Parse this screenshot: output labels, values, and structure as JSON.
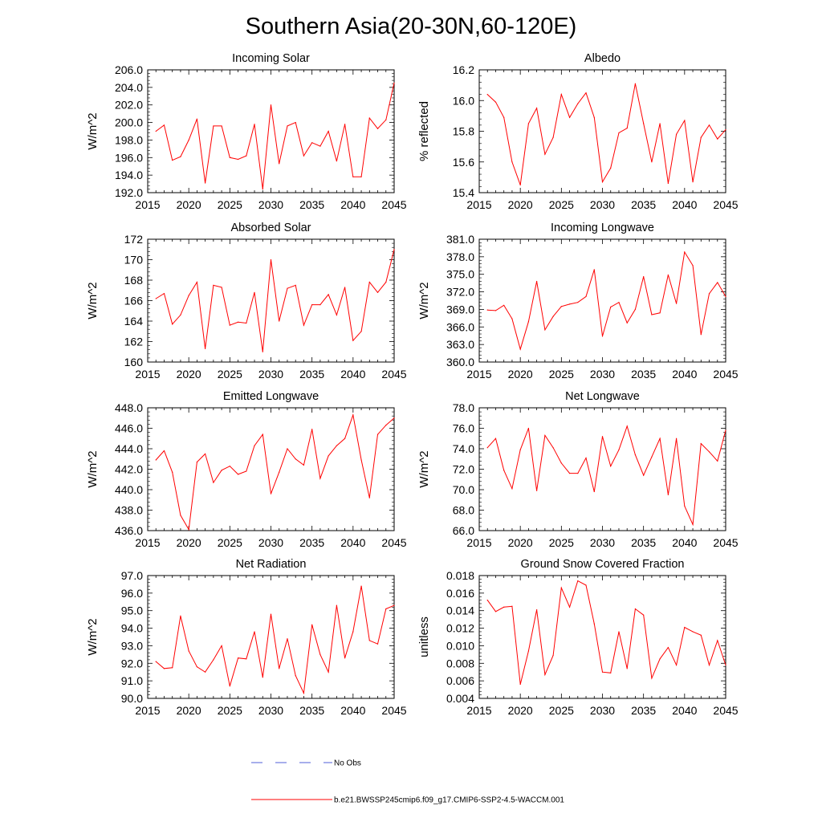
{
  "title": "Southern Asia(20-30N,60-120E)",
  "line_color": "#ff0000",
  "obs_color": "#4f5fd8",
  "legend": {
    "obs_label": "No Obs",
    "model_label": "b.e21.BWSSP245cmip6.f09_g17.CMIP6-SSP2-4.5-WACCM.001"
  },
  "chart_data": [
    {
      "type": "line",
      "title": "Incoming Solar",
      "ylabel": "W/m^2",
      "xlim": [
        2015,
        2045
      ],
      "ylim": [
        192,
        206
      ],
      "xticks": [
        2015,
        2020,
        2025,
        2030,
        2035,
        2040,
        2045
      ],
      "yticks": [
        "192.0",
        "194.0",
        "196.0",
        "198.0",
        "200.0",
        "202.0",
        "204.0",
        "206.0"
      ],
      "x": [
        2016,
        2017,
        2018,
        2019,
        2020,
        2021,
        2022,
        2023,
        2024,
        2025,
        2026,
        2027,
        2028,
        2029,
        2030,
        2031,
        2032,
        2033,
        2034,
        2035,
        2036,
        2037,
        2038,
        2039,
        2040,
        2041,
        2042,
        2043,
        2044,
        2045
      ],
      "values": [
        199.0,
        199.7,
        195.7,
        196.1,
        198.0,
        200.4,
        193.1,
        199.6,
        199.6,
        196.0,
        195.8,
        196.2,
        199.8,
        192.4,
        202.0,
        195.3,
        199.6,
        200.0,
        196.2,
        197.7,
        197.3,
        199.0,
        195.6,
        199.8,
        193.8,
        193.8,
        200.5,
        199.3,
        200.3,
        204.5
      ]
    },
    {
      "type": "line",
      "title": "Albedo",
      "ylabel": "% reflected",
      "xlim": [
        2015,
        2045
      ],
      "ylim": [
        15.4,
        16.2
      ],
      "xticks": [
        2015,
        2020,
        2025,
        2030,
        2035,
        2040,
        2045
      ],
      "yticks": [
        "15.4",
        "15.6",
        "15.8",
        "16.0",
        "16.2"
      ],
      "x": [
        2016,
        2017,
        2018,
        2019,
        2020,
        2021,
        2022,
        2023,
        2024,
        2025,
        2026,
        2027,
        2028,
        2029,
        2030,
        2031,
        2032,
        2033,
        2034,
        2035,
        2036,
        2037,
        2038,
        2039,
        2040,
        2041,
        2042,
        2043,
        2044,
        2045
      ],
      "values": [
        16.04,
        15.99,
        15.89,
        15.6,
        15.45,
        15.85,
        15.95,
        15.65,
        15.76,
        16.04,
        15.89,
        15.98,
        16.05,
        15.89,
        15.47,
        15.56,
        15.79,
        15.82,
        16.11,
        15.85,
        15.6,
        15.85,
        15.46,
        15.78,
        15.87,
        15.47,
        15.76,
        15.84,
        15.75,
        15.81
      ]
    },
    {
      "type": "line",
      "title": "Absorbed Solar",
      "ylabel": "W/m^2",
      "xlim": [
        2015,
        2045
      ],
      "ylim": [
        160,
        172
      ],
      "xticks": [
        2015,
        2020,
        2025,
        2030,
        2035,
        2040,
        2045
      ],
      "yticks": [
        "160",
        "162",
        "164",
        "166",
        "168",
        "170",
        "172"
      ],
      "x": [
        2016,
        2017,
        2018,
        2019,
        2020,
        2021,
        2022,
        2023,
        2024,
        2025,
        2026,
        2027,
        2028,
        2029,
        2030,
        2031,
        2032,
        2033,
        2034,
        2035,
        2036,
        2037,
        2038,
        2039,
        2040,
        2041,
        2042,
        2043,
        2044,
        2045
      ],
      "values": [
        166.2,
        166.7,
        163.7,
        164.6,
        166.5,
        167.8,
        161.3,
        167.5,
        167.3,
        163.6,
        163.9,
        163.8,
        166.8,
        161.0,
        170.0,
        164.0,
        167.2,
        167.5,
        163.6,
        165.6,
        165.6,
        166.6,
        164.6,
        167.3,
        162.1,
        163.0,
        167.8,
        166.8,
        167.8,
        171.0
      ]
    },
    {
      "type": "line",
      "title": "Incoming Longwave",
      "ylabel": "W/m^2",
      "xlim": [
        2015,
        2045
      ],
      "ylim": [
        360,
        381
      ],
      "xticks": [
        2015,
        2020,
        2025,
        2030,
        2035,
        2040,
        2045
      ],
      "yticks": [
        "360.0",
        "363.0",
        "366.0",
        "369.0",
        "372.0",
        "375.0",
        "378.0",
        "381.0"
      ],
      "x": [
        2016,
        2017,
        2018,
        2019,
        2020,
        2021,
        2022,
        2023,
        2024,
        2025,
        2026,
        2027,
        2028,
        2029,
        2030,
        2031,
        2032,
        2033,
        2034,
        2035,
        2036,
        2037,
        2038,
        2039,
        2040,
        2041,
        2042,
        2043,
        2044,
        2045
      ],
      "values": [
        368.9,
        368.8,
        369.7,
        367.4,
        362.2,
        366.9,
        373.8,
        365.5,
        367.8,
        369.5,
        369.9,
        370.2,
        371.2,
        375.8,
        364.4,
        369.4,
        370.2,
        366.7,
        369.0,
        374.6,
        368.1,
        368.4,
        374.9,
        370.0,
        378.8,
        376.5,
        364.7,
        371.7,
        373.6,
        371.2
      ]
    },
    {
      "type": "line",
      "title": "Emitted Longwave",
      "ylabel": "W/m^2",
      "xlim": [
        2015,
        2045
      ],
      "ylim": [
        436,
        448
      ],
      "xticks": [
        2015,
        2020,
        2025,
        2030,
        2035,
        2040,
        2045
      ],
      "yticks": [
        "436.0",
        "438.0",
        "440.0",
        "442.0",
        "444.0",
        "446.0",
        "448.0"
      ],
      "x": [
        2016,
        2017,
        2018,
        2019,
        2020,
        2021,
        2022,
        2023,
        2024,
        2025,
        2026,
        2027,
        2028,
        2029,
        2030,
        2031,
        2032,
        2033,
        2034,
        2035,
        2036,
        2037,
        2038,
        2039,
        2040,
        2041,
        2042,
        2043,
        2044,
        2045
      ],
      "values": [
        442.9,
        443.8,
        441.7,
        437.5,
        436.1,
        442.7,
        443.5,
        440.7,
        441.9,
        442.3,
        441.5,
        441.8,
        444.3,
        445.4,
        439.6,
        441.7,
        444.0,
        443.0,
        442.4,
        445.9,
        441.1,
        443.3,
        444.3,
        445.0,
        447.3,
        442.9,
        439.2,
        445.4,
        446.3,
        447.0
      ]
    },
    {
      "type": "line",
      "title": "Net Longwave",
      "ylabel": "W/m^2",
      "xlim": [
        2015,
        2045
      ],
      "ylim": [
        66,
        78
      ],
      "xticks": [
        2015,
        2020,
        2025,
        2030,
        2035,
        2040,
        2045
      ],
      "yticks": [
        "66.0",
        "68.0",
        "70.0",
        "72.0",
        "74.0",
        "76.0",
        "78.0"
      ],
      "x": [
        2016,
        2017,
        2018,
        2019,
        2020,
        2021,
        2022,
        2023,
        2024,
        2025,
        2026,
        2027,
        2028,
        2029,
        2030,
        2031,
        2032,
        2033,
        2034,
        2035,
        2036,
        2037,
        2038,
        2039,
        2040,
        2041,
        2042,
        2043,
        2044,
        2045
      ],
      "values": [
        74.1,
        75.0,
        71.9,
        70.1,
        73.9,
        76.0,
        69.9,
        75.3,
        74.1,
        72.6,
        71.6,
        71.6,
        73.1,
        69.8,
        75.2,
        72.3,
        73.9,
        76.2,
        73.4,
        71.4,
        73.2,
        75.0,
        69.5,
        75.0,
        68.4,
        66.6,
        74.5,
        73.7,
        72.8,
        75.8
      ]
    },
    {
      "type": "line",
      "title": "Net Radiation",
      "ylabel": "W/m^2",
      "xlim": [
        2015,
        2045
      ],
      "ylim": [
        90,
        97
      ],
      "xticks": [
        2015,
        2020,
        2025,
        2030,
        2035,
        2040,
        2045
      ],
      "yticks": [
        "90.0",
        "91.0",
        "92.0",
        "93.0",
        "94.0",
        "95.0",
        "96.0",
        "97.0"
      ],
      "x": [
        2016,
        2017,
        2018,
        2019,
        2020,
        2021,
        2022,
        2023,
        2024,
        2025,
        2026,
        2027,
        2028,
        2029,
        2030,
        2031,
        2032,
        2033,
        2034,
        2035,
        2036,
        2037,
        2038,
        2039,
        2040,
        2041,
        2042,
        2043,
        2044,
        2045
      ],
      "values": [
        92.1,
        91.7,
        91.75,
        94.7,
        92.7,
        91.8,
        91.5,
        92.2,
        93.0,
        90.7,
        92.3,
        92.25,
        93.8,
        91.2,
        94.8,
        91.7,
        93.4,
        91.3,
        90.3,
        94.2,
        92.5,
        91.5,
        95.3,
        92.3,
        93.8,
        96.4,
        93.3,
        93.1,
        95.1,
        95.3
      ]
    },
    {
      "type": "line",
      "title": "Ground Snow Covered Fraction",
      "ylabel": "unitless",
      "xlim": [
        2015,
        2045
      ],
      "ylim": [
        0.004,
        0.018
      ],
      "xticks": [
        2015,
        2020,
        2025,
        2030,
        2035,
        2040,
        2045
      ],
      "yticks": [
        "0.004",
        "0.006",
        "0.008",
        "0.010",
        "0.012",
        "0.014",
        "0.016",
        "0.018"
      ],
      "x": [
        2016,
        2017,
        2018,
        2019,
        2020,
        2021,
        2022,
        2023,
        2024,
        2025,
        2026,
        2027,
        2028,
        2029,
        2030,
        2031,
        2032,
        2033,
        2034,
        2035,
        2036,
        2037,
        2038,
        2039,
        2040,
        2041,
        2042,
        2043,
        2044,
        2045
      ],
      "values": [
        0.0152,
        0.0139,
        0.0144,
        0.0145,
        0.0056,
        0.0094,
        0.0141,
        0.0067,
        0.0089,
        0.0166,
        0.0144,
        0.0174,
        0.0169,
        0.0125,
        0.007,
        0.0069,
        0.0116,
        0.0074,
        0.0142,
        0.0135,
        0.0063,
        0.0085,
        0.0098,
        0.0078,
        0.0121,
        0.0116,
        0.0112,
        0.0078,
        0.0106,
        0.0078
      ]
    }
  ]
}
